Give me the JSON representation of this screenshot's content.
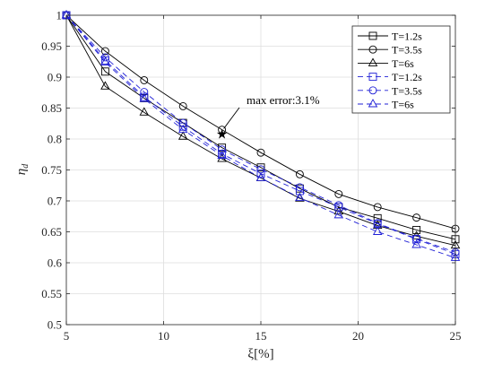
{
  "chart_data": {
    "type": "line",
    "xlabel": "ξ[%]",
    "ylabel": "η",
    "ylabel_sub": "d",
    "xlim": [
      5,
      25
    ],
    "ylim": [
      0.5,
      1
    ],
    "xticks": [
      5,
      10,
      15,
      20,
      25
    ],
    "yticks": [
      0.5,
      0.55,
      0.6,
      0.65,
      0.7,
      0.75,
      0.8,
      0.85,
      0.9,
      0.95,
      1
    ],
    "grid": true,
    "legend_position": "top-right",
    "x": [
      5,
      7,
      9,
      11,
      13,
      15,
      17,
      19,
      21,
      23,
      25
    ],
    "series": [
      {
        "name": "T=1.2s",
        "color": "#000000",
        "dash": "solid",
        "marker": "square",
        "values": [
          1.0,
          0.909,
          0.866,
          0.826,
          0.786,
          0.754,
          0.72,
          0.69,
          0.672,
          0.653,
          0.638
        ]
      },
      {
        "name": "T=3.5s",
        "color": "#000000",
        "dash": "solid",
        "marker": "circle",
        "values": [
          1.0,
          0.942,
          0.895,
          0.853,
          0.815,
          0.778,
          0.743,
          0.711,
          0.69,
          0.673,
          0.655
        ]
      },
      {
        "name": "T=6s",
        "color": "#000000",
        "dash": "solid",
        "marker": "triangle",
        "values": [
          1.0,
          0.885,
          0.843,
          0.804,
          0.768,
          0.737,
          0.704,
          0.683,
          0.66,
          0.643,
          0.628
        ]
      },
      {
        "name": "T=1.2s",
        "color": "#1f1fd6",
        "dash": "dashed",
        "marker": "square",
        "values": [
          1.0,
          0.927,
          0.868,
          0.82,
          0.776,
          0.744,
          0.716,
          0.69,
          0.663,
          0.638,
          0.614
        ]
      },
      {
        "name": "T=3.5s",
        "color": "#1f1fd6",
        "dash": "dashed",
        "marker": "circle",
        "values": [
          1.0,
          0.932,
          0.876,
          0.826,
          0.783,
          0.751,
          0.722,
          0.693,
          0.664,
          0.639,
          0.617
        ]
      },
      {
        "name": "T=6s",
        "color": "#1f1fd6",
        "dash": "dashed",
        "marker": "triangle",
        "values": [
          1.0,
          0.924,
          0.865,
          0.815,
          0.773,
          0.737,
          0.705,
          0.677,
          0.65,
          0.629,
          0.608
        ]
      }
    ],
    "annotations": [
      {
        "text": "max error:3.1%",
        "x": 13,
        "y": 0.808,
        "marker": "star"
      }
    ]
  }
}
